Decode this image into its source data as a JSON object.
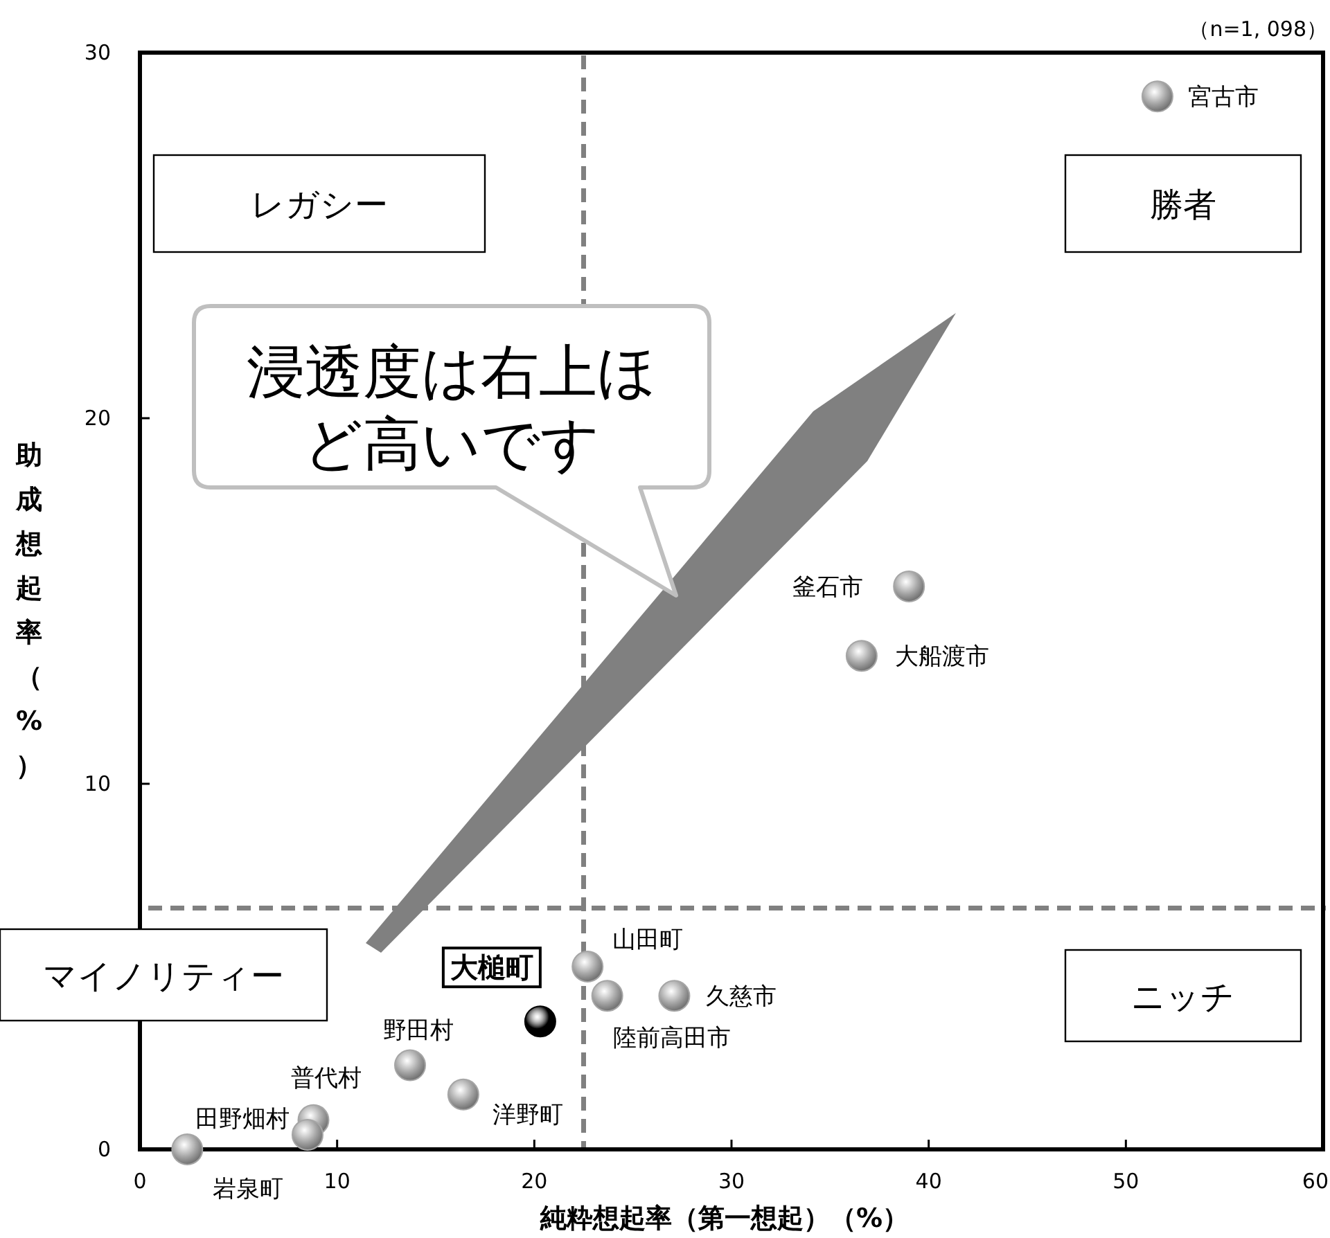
{
  "chart_data": {
    "type": "scatter",
    "xlabel": "純粋想起率（第一想起）（%）",
    "ylabel": "助成想起率（%）",
    "xlim": [
      0,
      60
    ],
    "ylim": [
      0,
      30
    ],
    "xticks": [
      0,
      10,
      20,
      30,
      40,
      50,
      60
    ],
    "yticks": [
      0,
      10,
      20,
      30
    ],
    "marker": "circle",
    "x": [
      51.6,
      39.0,
      36.6,
      22.7,
      23.7,
      27.1,
      20.3,
      13.7,
      16.4,
      8.8,
      8.5,
      2.4
    ],
    "values": [
      28.8,
      15.4,
      13.5,
      5.0,
      4.2,
      4.2,
      3.5,
      2.3,
      1.5,
      0.8,
      0.4,
      0.0
    ],
    "colors": [
      "#a6a6a6",
      "#a6a6a6",
      "#a6a6a6",
      "#a6a6a6",
      "#a6a6a6",
      "#a6a6a6",
      "#000000",
      "#a6a6a6",
      "#a6a6a6",
      "#a6a6a6",
      "#a6a6a6",
      "#a6a6a6"
    ],
    "ref_lines": [
      {
        "axis": "x",
        "value": 22.5,
        "color": "#808080",
        "line_style": "dashed"
      },
      {
        "axis": "y",
        "value": 6.6,
        "color": "#808080",
        "line_style": "dashed"
      }
    ],
    "annotations": [
      "（n=1, 098）",
      "レガシー",
      "勝者",
      "マイノリティー",
      "ニッチ",
      "浸透度は右上ほど高いです",
      {
        "text": "宮古市",
        "x": 51.6,
        "y": 28.8
      },
      {
        "text": "釜石市",
        "x": 39.0,
        "y": 15.4
      },
      {
        "text": "大船渡市",
        "x": 36.6,
        "y": 13.5
      },
      {
        "text": "山田町",
        "x": 22.7,
        "y": 5.0
      },
      {
        "text": "陸前高田市",
        "x": 23.7,
        "y": 4.2
      },
      {
        "text": "久慈市",
        "x": 27.1,
        "y": 4.2
      },
      {
        "text": "大槌町",
        "x": 20.3,
        "y": 3.5
      },
      {
        "text": "野田村",
        "x": 13.7,
        "y": 2.3
      },
      {
        "text": "洋野町",
        "x": 16.4,
        "y": 1.5
      },
      {
        "text": "普代村",
        "x": 8.8,
        "y": 0.8
      },
      {
        "text": "田野畑村",
        "x": 8.5,
        "y": 0.4
      },
      {
        "text": "岩泉町",
        "x": 2.4,
        "y": 0.0
      }
    ]
  }
}
